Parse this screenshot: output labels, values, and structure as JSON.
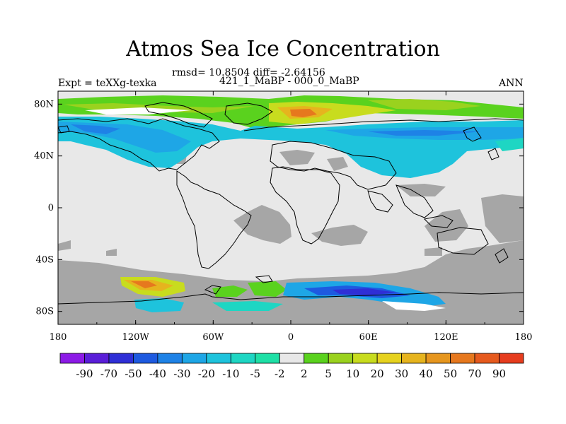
{
  "title": "Atmos Sea Ice Concentration",
  "stats": "rmsd= 10.8504 diff= -2.64156",
  "left_label": "Expt = teXXg-texka",
  "center_label": "421_1_MaBP - 000_0_MaBP",
  "right_label": "ANN",
  "colors": {
    "land": "#e8e8e8",
    "missing": "#a6a6a6",
    "coast": "#000000"
  },
  "chart_data": {
    "type": "heatmap",
    "lon_ticks": [
      "180",
      "120W",
      "60W",
      "0",
      "60E",
      "120E",
      "180"
    ],
    "lat_ticks": [
      "80N",
      "40N",
      "0",
      "40S",
      "80S"
    ],
    "lon_range": [
      -180,
      180
    ],
    "lat_range": [
      -90,
      90
    ],
    "colorbar": {
      "labels": [
        "-90",
        "-70",
        "-50",
        "-40",
        "-30",
        "-20",
        "-10",
        "-5",
        "-2",
        "2",
        "5",
        "10",
        "20",
        "30",
        "40",
        "50",
        "70",
        "90"
      ],
      "colors": [
        "#8c1ae6",
        "#5a1ed8",
        "#2f2fd6",
        "#1e5ae0",
        "#1e82e6",
        "#1ea6e6",
        "#1ec3dc",
        "#1ed6c3",
        "#1ee0a6",
        "#e8e8e8",
        "#5ad21e",
        "#9ad21e",
        "#c8dc1e",
        "#e6d21e",
        "#e6b41e",
        "#e6961e",
        "#e6781e",
        "#e65a1e",
        "#e63c1e"
      ]
    }
  }
}
